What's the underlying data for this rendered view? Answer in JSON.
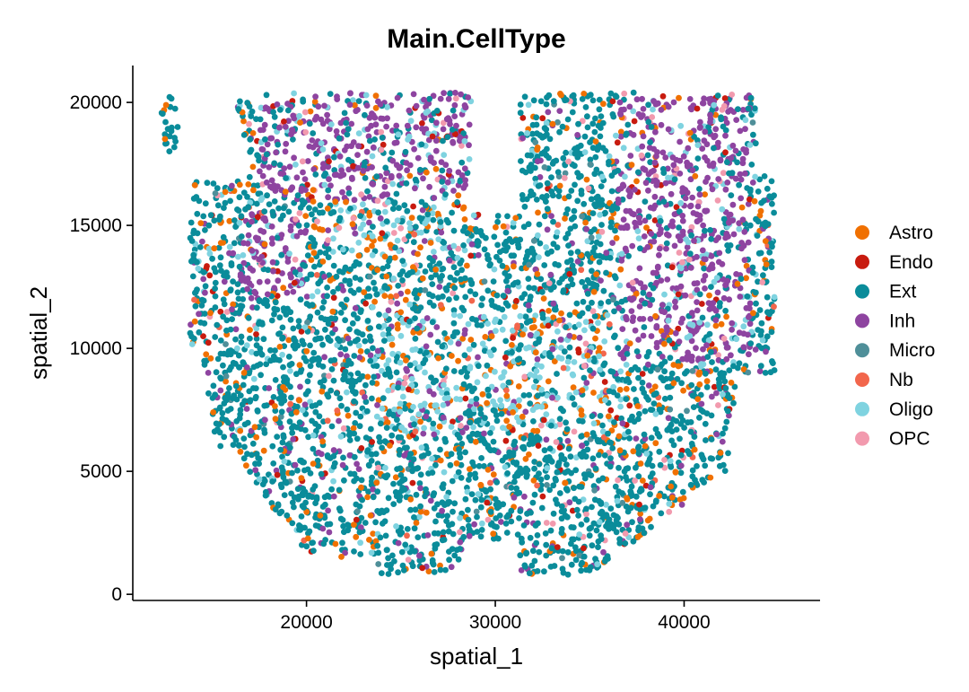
{
  "chart_data": {
    "type": "scatter",
    "title": "Main.CellType",
    "xlabel": "spatial_1",
    "ylabel": "spatial_2",
    "xlim": [
      10800,
      47200
    ],
    "ylim": [
      -250,
      21500
    ],
    "x_ticks": [
      20000,
      30000,
      40000
    ],
    "x_tick_labels": [
      "20000",
      "30000",
      "40000"
    ],
    "y_ticks": [
      0,
      5000,
      10000,
      15000,
      20000
    ],
    "y_tick_labels": [
      "0",
      "5000",
      "10000",
      "15000",
      "20000"
    ],
    "grid": false,
    "legend_position": "right",
    "series": [
      {
        "name": "Astro",
        "color": "#F07000"
      },
      {
        "name": "Endo",
        "color": "#C81B0F"
      },
      {
        "name": "Ext",
        "color": "#0A8C9A"
      },
      {
        "name": "Inh",
        "color": "#8E44A0"
      },
      {
        "name": "Micro",
        "color": "#4F8F99"
      },
      {
        "name": "Nb",
        "color": "#F2664C"
      },
      {
        "name": "Oligo",
        "color": "#7FD3E0"
      },
      {
        "name": "OPC",
        "color": "#F29AAE"
      }
    ],
    "points_note": "Dense spatial scatter of cells; individual positions not labeled"
  }
}
